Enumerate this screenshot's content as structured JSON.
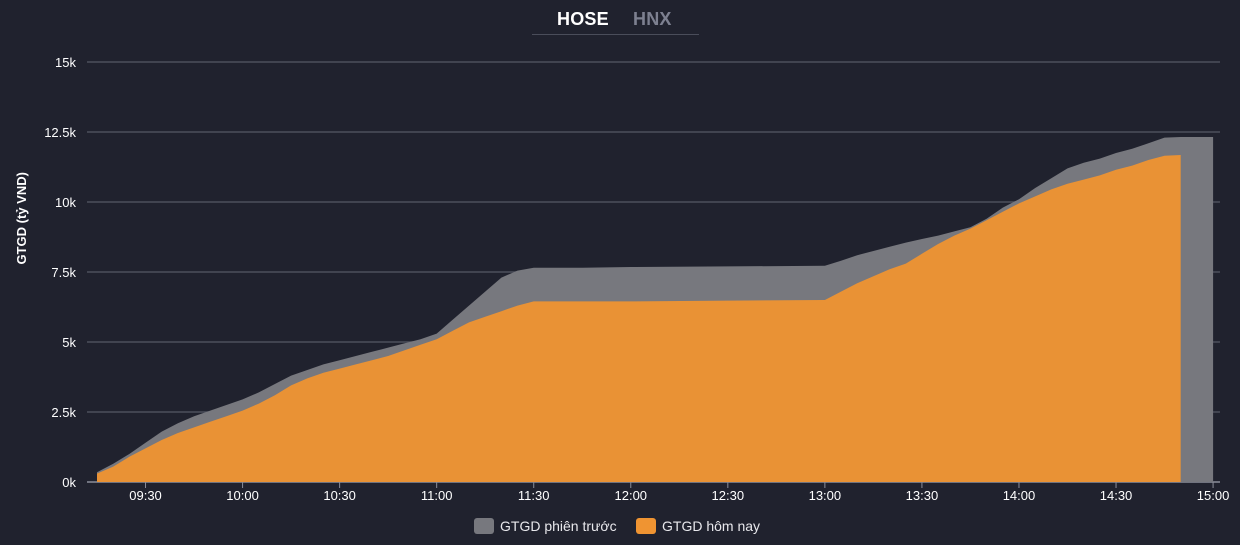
{
  "tabs": [
    {
      "label": "HOSE",
      "active": true
    },
    {
      "label": "HNX",
      "active": false
    }
  ],
  "chart_data": {
    "type": "area",
    "title": "",
    "xlabel": "",
    "ylabel": "GTGD (tỷ VND)",
    "ylim": [
      0,
      15000
    ],
    "y_ticks": [
      0,
      2500,
      5000,
      7500,
      10000,
      12500,
      15000
    ],
    "y_tick_labels": [
      "0k",
      "2.5k",
      "5k",
      "7.5k",
      "10k",
      "12.5k",
      "15k"
    ],
    "x_ticks": [
      "09:30",
      "10:00",
      "10:30",
      "11:00",
      "11:30",
      "12:00",
      "12:30",
      "13:00",
      "13:30",
      "14:00",
      "14:30",
      "15:00"
    ],
    "grid": true,
    "legend_position": "bottom-center",
    "series": [
      {
        "name": "GTGD phiên trước",
        "color": "#77787e",
        "points": [
          [
            "09:15",
            350
          ],
          [
            "09:20",
            650
          ],
          [
            "09:25",
            1000
          ],
          [
            "09:30",
            1400
          ],
          [
            "09:35",
            1800
          ],
          [
            "09:40",
            2100
          ],
          [
            "09:45",
            2350
          ],
          [
            "09:50",
            2550
          ],
          [
            "09:55",
            2750
          ],
          [
            "10:00",
            2950
          ],
          [
            "10:05",
            3200
          ],
          [
            "10:10",
            3500
          ],
          [
            "10:15",
            3800
          ],
          [
            "10:20",
            4000
          ],
          [
            "10:25",
            4200
          ],
          [
            "10:30",
            4350
          ],
          [
            "10:35",
            4500
          ],
          [
            "10:40",
            4650
          ],
          [
            "10:45",
            4800
          ],
          [
            "10:50",
            4950
          ],
          [
            "10:55",
            5100
          ],
          [
            "11:00",
            5300
          ],
          [
            "11:05",
            5800
          ],
          [
            "11:10",
            6300
          ],
          [
            "11:15",
            6800
          ],
          [
            "11:20",
            7300
          ],
          [
            "11:25",
            7550
          ],
          [
            "11:30",
            7650
          ],
          [
            "11:45",
            7650
          ],
          [
            "12:00",
            7680
          ],
          [
            "12:30",
            7700
          ],
          [
            "13:00",
            7720
          ],
          [
            "13:05",
            7900
          ],
          [
            "13:10",
            8100
          ],
          [
            "13:15",
            8250
          ],
          [
            "13:20",
            8400
          ],
          [
            "13:25",
            8550
          ],
          [
            "13:30",
            8680
          ],
          [
            "13:35",
            8800
          ],
          [
            "13:40",
            8950
          ],
          [
            "13:45",
            9100
          ],
          [
            "13:50",
            9400
          ],
          [
            "13:55",
            9800
          ],
          [
            "14:00",
            10100
          ],
          [
            "14:05",
            10500
          ],
          [
            "14:10",
            10850
          ],
          [
            "14:15",
            11200
          ],
          [
            "14:20",
            11400
          ],
          [
            "14:25",
            11550
          ],
          [
            "14:30",
            11750
          ],
          [
            "14:35",
            11900
          ],
          [
            "14:40",
            12100
          ],
          [
            "14:45",
            12300
          ],
          [
            "14:50",
            12320
          ],
          [
            "14:55",
            12320
          ],
          [
            "15:00",
            12320
          ]
        ]
      },
      {
        "name": "GTGD hôm nay",
        "color": "#ef9432",
        "points": [
          [
            "09:15",
            300
          ],
          [
            "09:20",
            550
          ],
          [
            "09:25",
            900
          ],
          [
            "09:30",
            1200
          ],
          [
            "09:35",
            1500
          ],
          [
            "09:40",
            1750
          ],
          [
            "09:45",
            1950
          ],
          [
            "09:50",
            2150
          ],
          [
            "09:55",
            2350
          ],
          [
            "10:00",
            2550
          ],
          [
            "10:05",
            2800
          ],
          [
            "10:10",
            3100
          ],
          [
            "10:15",
            3450
          ],
          [
            "10:20",
            3700
          ],
          [
            "10:25",
            3900
          ],
          [
            "10:30",
            4050
          ],
          [
            "10:35",
            4200
          ],
          [
            "10:40",
            4350
          ],
          [
            "10:45",
            4500
          ],
          [
            "10:50",
            4700
          ],
          [
            "10:55",
            4900
          ],
          [
            "11:00",
            5100
          ],
          [
            "11:05",
            5400
          ],
          [
            "11:10",
            5700
          ],
          [
            "11:15",
            5900
          ],
          [
            "11:20",
            6100
          ],
          [
            "11:25",
            6300
          ],
          [
            "11:30",
            6450
          ],
          [
            "12:00",
            6450
          ],
          [
            "12:30",
            6480
          ],
          [
            "13:00",
            6500
          ],
          [
            "13:05",
            6800
          ],
          [
            "13:10",
            7100
          ],
          [
            "13:15",
            7350
          ],
          [
            "13:20",
            7600
          ],
          [
            "13:25",
            7800
          ],
          [
            "13:30",
            8150
          ],
          [
            "13:35",
            8500
          ],
          [
            "13:40",
            8800
          ],
          [
            "13:45",
            9050
          ],
          [
            "13:50",
            9350
          ],
          [
            "13:55",
            9650
          ],
          [
            "14:00",
            9950
          ],
          [
            "14:05",
            10200
          ],
          [
            "14:10",
            10450
          ],
          [
            "14:15",
            10650
          ],
          [
            "14:20",
            10800
          ],
          [
            "14:25",
            10950
          ],
          [
            "14:30",
            11150
          ],
          [
            "14:35",
            11300
          ],
          [
            "14:40",
            11500
          ],
          [
            "14:45",
            11650
          ],
          [
            "14:50",
            11680
          ]
        ]
      }
    ]
  }
}
